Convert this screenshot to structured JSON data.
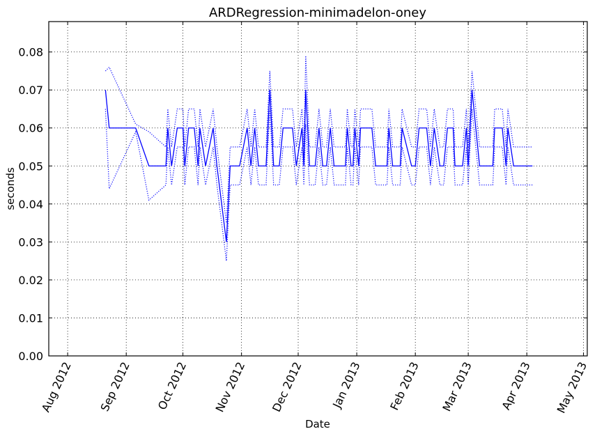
{
  "chart_data": {
    "type": "line",
    "title": "ARDRegression-minimadelon-oney",
    "xlabel": "Date",
    "ylabel": "seconds",
    "x": [
      734736,
      734738,
      734752,
      734759,
      734768,
      734769,
      734771,
      734774,
      734777,
      734778,
      734780,
      734783,
      734785,
      734786,
      734789,
      734793,
      734795,
      734800,
      734802,
      734807,
      734811,
      734813,
      734815,
      734817,
      734821,
      734823,
      734825,
      734828,
      734830,
      734835,
      734837,
      734840,
      734841,
      734842,
      734844,
      734847,
      734849,
      734851,
      734853,
      734855,
      734857,
      734863,
      734864,
      734866,
      734867,
      734868,
      734870,
      734871,
      734877,
      734879,
      734885,
      734886,
      734888,
      734892,
      734893,
      734898,
      734900,
      734902,
      734906,
      734908,
      734910,
      734913,
      734915,
      734917,
      734920,
      734921,
      734925,
      734927,
      734928,
      734930,
      734934,
      734941,
      734942,
      734946,
      734948,
      734949,
      734952,
      734962
    ],
    "series": [
      {
        "color": "#0000ff",
        "linestyle": "solid",
        "values": [
          0.07,
          0.06,
          0.06,
          0.05,
          0.05,
          0.06,
          0.05,
          0.06,
          0.06,
          0.05,
          0.06,
          0.06,
          0.05,
          0.06,
          0.05,
          0.06,
          0.05,
          0.03,
          0.05,
          0.05,
          0.06,
          0.05,
          0.06,
          0.05,
          0.05,
          0.07,
          0.05,
          0.05,
          0.06,
          0.06,
          0.05,
          0.06,
          0.05,
          0.07,
          0.05,
          0.05,
          0.06,
          0.05,
          0.05,
          0.06,
          0.05,
          0.05,
          0.06,
          0.05,
          0.05,
          0.06,
          0.05,
          0.06,
          0.06,
          0.05,
          0.05,
          0.06,
          0.05,
          0.05,
          0.06,
          0.05,
          0.05,
          0.06,
          0.06,
          0.05,
          0.06,
          0.05,
          0.05,
          0.06,
          0.06,
          0.05,
          0.05,
          0.06,
          0.05,
          0.07,
          0.05,
          0.05,
          0.06,
          0.06,
          0.05,
          0.06,
          0.05,
          0.05
        ]
      },
      {
        "color": "#0000ff",
        "linestyle": "dotted",
        "values": [
          0.075,
          0.076,
          0.061,
          0.059,
          0.055,
          0.065,
          0.055,
          0.065,
          0.065,
          0.055,
          0.065,
          0.065,
          0.055,
          0.065,
          0.055,
          0.065,
          0.055,
          0.035,
          0.055,
          0.055,
          0.065,
          0.055,
          0.065,
          0.055,
          0.055,
          0.075,
          0.055,
          0.055,
          0.065,
          0.065,
          0.055,
          0.065,
          0.055,
          0.079,
          0.055,
          0.055,
          0.065,
          0.055,
          0.055,
          0.065,
          0.055,
          0.055,
          0.065,
          0.055,
          0.055,
          0.065,
          0.055,
          0.065,
          0.065,
          0.055,
          0.055,
          0.065,
          0.055,
          0.055,
          0.065,
          0.055,
          0.055,
          0.065,
          0.065,
          0.055,
          0.065,
          0.055,
          0.055,
          0.065,
          0.065,
          0.055,
          0.055,
          0.065,
          0.055,
          0.075,
          0.055,
          0.055,
          0.065,
          0.065,
          0.055,
          0.065,
          0.055,
          0.055
        ]
      },
      {
        "color": "#0000ff",
        "linestyle": "dotted",
        "values": [
          0.065,
          0.044,
          0.059,
          0.041,
          0.045,
          0.055,
          0.045,
          0.055,
          0.055,
          0.045,
          0.055,
          0.055,
          0.045,
          0.055,
          0.045,
          0.055,
          0.045,
          0.025,
          0.045,
          0.045,
          0.055,
          0.045,
          0.055,
          0.045,
          0.045,
          0.065,
          0.045,
          0.045,
          0.055,
          0.055,
          0.045,
          0.055,
          0.045,
          0.061,
          0.045,
          0.045,
          0.055,
          0.045,
          0.045,
          0.055,
          0.045,
          0.045,
          0.055,
          0.045,
          0.045,
          0.055,
          0.045,
          0.055,
          0.055,
          0.045,
          0.045,
          0.055,
          0.045,
          0.045,
          0.055,
          0.045,
          0.045,
          0.055,
          0.055,
          0.045,
          0.055,
          0.045,
          0.045,
          0.055,
          0.055,
          0.045,
          0.045,
          0.055,
          0.045,
          0.065,
          0.045,
          0.045,
          0.055,
          0.055,
          0.045,
          0.055,
          0.045,
          0.045
        ]
      }
    ],
    "xlim": [
      734706,
      734991
    ],
    "xticks": [
      {
        "value": 734716,
        "label": "Aug 2012"
      },
      {
        "value": 734747,
        "label": "Sep 2012"
      },
      {
        "value": 734777,
        "label": "Oct 2012"
      },
      {
        "value": 734808,
        "label": "Nov 2012"
      },
      {
        "value": 734838,
        "label": "Dec 2012"
      },
      {
        "value": 734869,
        "label": "Jan 2013"
      },
      {
        "value": 734900,
        "label": "Feb 2013"
      },
      {
        "value": 734928,
        "label": "Mar 2013"
      },
      {
        "value": 734959,
        "label": "Apr 2013"
      },
      {
        "value": 734989,
        "label": "May 2013"
      }
    ],
    "ylim": [
      0,
      0.088
    ],
    "yticks": [
      {
        "value": 0,
        "label": "0.00"
      },
      {
        "value": 0.01,
        "label": "0.01"
      },
      {
        "value": 0.02,
        "label": "0.02"
      },
      {
        "value": 0.03,
        "label": "0.03"
      },
      {
        "value": 0.04,
        "label": "0.04"
      },
      {
        "value": 0.05,
        "label": "0.05"
      },
      {
        "value": 0.06,
        "label": "0.06"
      },
      {
        "value": 0.07,
        "label": "0.07"
      },
      {
        "value": 0.08,
        "label": "0.08"
      }
    ],
    "grid": true
  }
}
